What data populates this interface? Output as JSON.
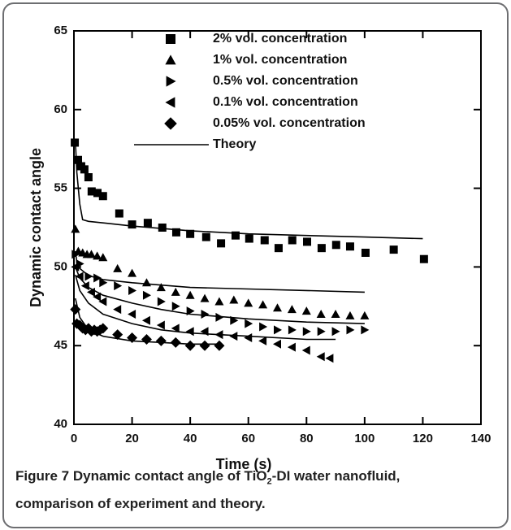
{
  "chart_data": {
    "type": "scatter",
    "xlabel": "Time (s)",
    "ylabel": "Dynamic contact angle",
    "xlim": [
      0,
      140
    ],
    "xticks": [
      0,
      20,
      40,
      60,
      80,
      100,
      120,
      140
    ],
    "ylim": [
      40,
      65
    ],
    "yticks": [
      40,
      45,
      50,
      55,
      60,
      65
    ],
    "series": [
      {
        "name": "2% vol. concentration",
        "color": "#000000",
        "marker": "square",
        "x": [
          0.3,
          1.4,
          2.5,
          3.6,
          5,
          6.1,
          8.1,
          10,
          15.6,
          20,
          25.4,
          30.4,
          35.2,
          40,
          45.5,
          50.6,
          55.6,
          60.3,
          65.6,
          70.4,
          75.1,
          80.2,
          85.2,
          90.2,
          95,
          100.3,
          110,
          120.4
        ],
        "y": [
          57.9,
          56.8,
          56.4,
          56.2,
          55.7,
          54.8,
          54.7,
          54.5,
          53.4,
          52.7,
          52.8,
          52.5,
          52.2,
          52.1,
          51.9,
          51.5,
          52.0,
          51.8,
          51.7,
          51.2,
          51.7,
          51.6,
          51.2,
          51.4,
          51.3,
          50.9,
          51.1,
          50.5
        ]
      },
      {
        "name": "1% vol. concentration",
        "color": "#000000",
        "marker": "triangle-up",
        "x": [
          0.5,
          1.5,
          3,
          4.5,
          6,
          8,
          10,
          15,
          20,
          25,
          30,
          35,
          40,
          45,
          50,
          55,
          60,
          65,
          70,
          75,
          80,
          85,
          90,
          95,
          100
        ],
        "y": [
          52.4,
          51.0,
          50.9,
          50.8,
          50.8,
          50.7,
          50.6,
          49.9,
          49.6,
          49.0,
          48.7,
          48.4,
          48.2,
          48.0,
          47.8,
          47.9,
          47.7,
          47.6,
          47.4,
          47.3,
          47.2,
          47.0,
          47.0,
          46.9,
          46.9
        ]
      },
      {
        "name": "0.5% vol. concentration",
        "color": "#000000",
        "marker": "triangle-right",
        "x": [
          0.5,
          2,
          5,
          8,
          10,
          15,
          20,
          25,
          30,
          35,
          40,
          45,
          50,
          55,
          60,
          65,
          70,
          75,
          80,
          85,
          90,
          95,
          100
        ],
        "y": [
          50.8,
          50.2,
          49.4,
          49.3,
          49.0,
          48.8,
          48.5,
          48.2,
          47.8,
          47.5,
          47.2,
          47.0,
          46.8,
          46.6,
          46.4,
          46.2,
          46.0,
          46.0,
          45.9,
          45.9,
          45.9,
          46.0,
          46.0
        ]
      },
      {
        "name": "0.1% vol. concentration",
        "color": "#000000",
        "marker": "triangle-left",
        "x": [
          0.5,
          2,
          4,
          6,
          8,
          10,
          15,
          20,
          25,
          30,
          35,
          40,
          45,
          50,
          55,
          60,
          65,
          70,
          75,
          80,
          85,
          88
        ],
        "y": [
          50.0,
          49.4,
          48.8,
          48.4,
          48.1,
          47.8,
          47.3,
          47.0,
          46.6,
          46.3,
          46.1,
          45.9,
          45.9,
          45.7,
          45.6,
          45.5,
          45.3,
          45.1,
          44.9,
          44.7,
          44.3,
          44.2
        ]
      },
      {
        "name": "0.05% vol. concentration",
        "color": "#000000",
        "marker": "diamond",
        "x": [
          0.5,
          1,
          2,
          3,
          4,
          5,
          6,
          7,
          8,
          9,
          10,
          15,
          20,
          25,
          30,
          35,
          40,
          45,
          50
        ],
        "y": [
          47.3,
          46.4,
          46.3,
          46.1,
          46.0,
          46.1,
          45.9,
          46.0,
          45.9,
          46.0,
          46.1,
          45.7,
          45.5,
          45.4,
          45.3,
          45.2,
          45.0,
          45.0,
          45.0
        ]
      }
    ],
    "theory": {
      "name": "Theory",
      "color": "#000000",
      "curves": [
        {
          "x": [
            0.5,
            1,
            2,
            3,
            5,
            10,
            20,
            40,
            60,
            80,
            100,
            120
          ],
          "y": [
            58,
            56,
            54,
            53,
            52.9,
            52.8,
            52.6,
            52.3,
            52.1,
            52,
            51.9,
            51.8
          ]
        },
        {
          "x": [
            0.5,
            1,
            2,
            4,
            6,
            10,
            20,
            40,
            60,
            80,
            100
          ],
          "y": [
            51,
            50.3,
            49.9,
            49.6,
            49.4,
            49.2,
            49.0,
            48.7,
            48.6,
            48.5,
            48.4
          ]
        },
        {
          "x": [
            0.5,
            2,
            5,
            10,
            20,
            30,
            40,
            60,
            80,
            100
          ],
          "y": [
            50,
            49.3,
            48.7,
            48.2,
            47.7,
            47.3,
            47.0,
            46.7,
            46.5,
            46.4
          ]
        },
        {
          "x": [
            0.5,
            2,
            5,
            10,
            20,
            30,
            40,
            60,
            80,
            90
          ],
          "y": [
            49.5,
            48.5,
            47.7,
            47.0,
            46.4,
            46.0,
            45.8,
            45.6,
            45.4,
            45.4
          ]
        },
        {
          "x": [
            0.5,
            2,
            5,
            10,
            20,
            30,
            40,
            50
          ],
          "y": [
            48,
            46.8,
            46,
            45.6,
            45.3,
            45.2,
            45.1,
            45.1
          ]
        }
      ]
    }
  },
  "caption": {
    "label": "Figure 7",
    "text_start": "Dynamic contact angle of TiO",
    "subscript": "2",
    "text_rest": "-DI water nanofluid,",
    "line2": "comparison of experiment and theory."
  }
}
